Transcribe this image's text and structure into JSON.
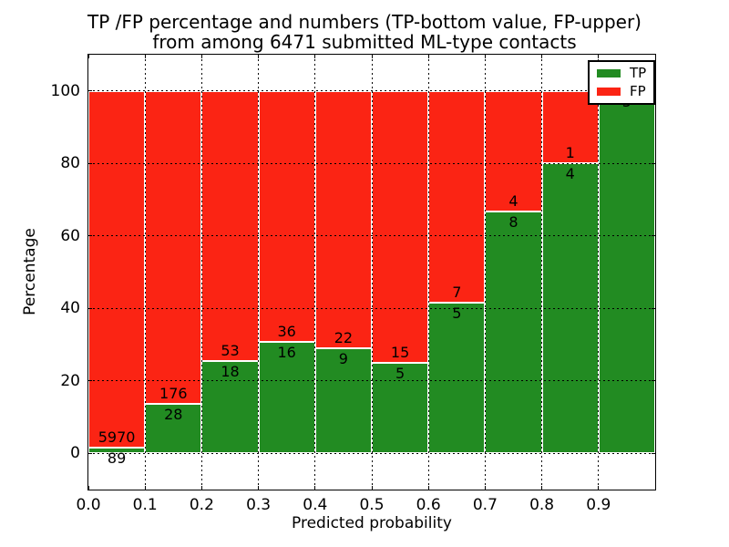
{
  "title_line1": "TP /FP percentage and numbers (TP-bottom value, FP-upper)",
  "title_line2": "from among 6471 submitted ML-type contacts",
  "chart_data": {
    "type": "bar",
    "stacked": true,
    "note": "Each bin normalized to 100%; text labels show raw counts (TP bottom, FP upper)",
    "total_submitted": 6471,
    "bin_edges": [
      0.0,
      0.1,
      0.2,
      0.3,
      0.4,
      0.5,
      0.6,
      0.7,
      0.8,
      0.9,
      1.0
    ],
    "series": [
      {
        "name": "TP",
        "color": "#228b22",
        "counts": [
          89,
          28,
          18,
          16,
          9,
          5,
          5,
          8,
          4,
          5
        ]
      },
      {
        "name": "FP",
        "color": "#fb2414",
        "counts": [
          5970,
          176,
          53,
          36,
          22,
          15,
          7,
          4,
          1,
          0
        ]
      }
    ],
    "tp_percent_per_bin": [
      1.47,
      13.73,
      25.35,
      30.77,
      29.03,
      25.0,
      41.67,
      66.67,
      80.0,
      100.0
    ],
    "xlabel": "Predicted probability",
    "ylabel": "Percentage",
    "x_tick_labels": [
      "0.0",
      "0.1",
      "0.2",
      "0.3",
      "0.4",
      "0.5",
      "0.6",
      "0.7",
      "0.8",
      "0.9"
    ],
    "y_tick_values": [
      0,
      20,
      40,
      60,
      80,
      100
    ],
    "xlim": [
      0,
      1
    ],
    "ylim": [
      -10,
      110
    ],
    "grid": "dotted black, vertical at each 0.1 and horizontal at each 20",
    "bar_edge_color": "#ffffff",
    "legend": {
      "position": "upper right",
      "items": [
        {
          "label": "TP",
          "color": "#228b22"
        },
        {
          "label": "FP",
          "color": "#fb2414"
        }
      ]
    }
  }
}
